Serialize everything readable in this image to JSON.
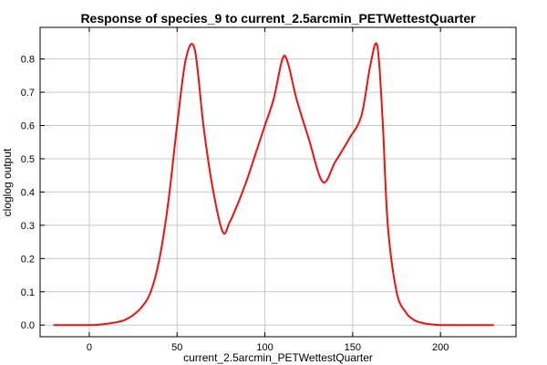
{
  "chart_data": {
    "type": "line",
    "title": "Response of species_9 to current_2.5arcmin_PETWettestQuarter",
    "xlabel": "current_2.5arcmin_PETWettestQuarter",
    "ylabel": "cloglog output",
    "xlim": [
      -28,
      243
    ],
    "ylim": [
      -0.035,
      0.895
    ],
    "xticks": [
      0,
      50,
      100,
      150,
      200
    ],
    "yticks": [
      0.0,
      0.1,
      0.2,
      0.3,
      0.4,
      0.5,
      0.6,
      0.7,
      0.8
    ],
    "grid": true,
    "series": [
      {
        "color": "#ee1111",
        "x": [
          -20,
          0,
          5,
          10,
          15,
          20,
          25,
          30,
          35,
          40,
          45,
          50,
          55,
          60,
          65,
          70,
          76,
          80,
          85,
          90,
          95,
          100,
          105,
          110,
          113,
          118,
          125,
          133,
          140,
          148,
          155,
          160,
          164,
          167,
          170,
          175,
          180,
          185,
          190,
          195,
          200,
          210,
          220,
          230
        ],
        "y": [
          0.0,
          0.0,
          0.001,
          0.004,
          0.008,
          0.015,
          0.03,
          0.055,
          0.1,
          0.2,
          0.37,
          0.6,
          0.8,
          0.83,
          0.6,
          0.42,
          0.28,
          0.31,
          0.37,
          0.44,
          0.52,
          0.6,
          0.68,
          0.8,
          0.79,
          0.68,
          0.56,
          0.43,
          0.49,
          0.56,
          0.63,
          0.78,
          0.84,
          0.62,
          0.3,
          0.1,
          0.04,
          0.015,
          0.006,
          0.002,
          0.0,
          0.0,
          0.0,
          0.0
        ]
      }
    ]
  }
}
